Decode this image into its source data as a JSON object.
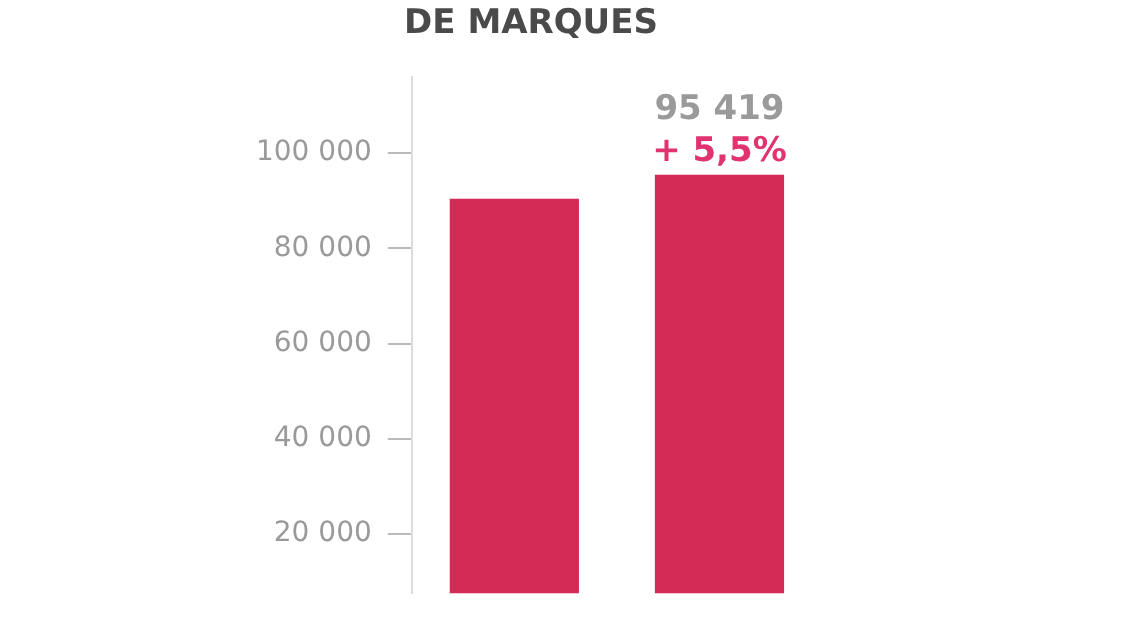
{
  "chart_data": {
    "type": "bar",
    "title": "DE MARQUES",
    "categories": [
      null,
      null
    ],
    "values": [
      90400,
      95419
    ],
    "value_labels": [
      null,
      "95 419"
    ],
    "annotations": [
      "+ 5,5%"
    ],
    "color": "#d42a56",
    "ylim": [
      7600,
      116000
    ],
    "yticks": [
      {
        "value": 20000,
        "label": "20 000"
      },
      {
        "value": 40000,
        "label": "40 000"
      },
      {
        "value": 60000,
        "label": "60 000"
      },
      {
        "value": 80000,
        "label": "80 000"
      },
      {
        "value": 100000,
        "label": "100 000"
      }
    ],
    "grid": false,
    "legend": false
  }
}
